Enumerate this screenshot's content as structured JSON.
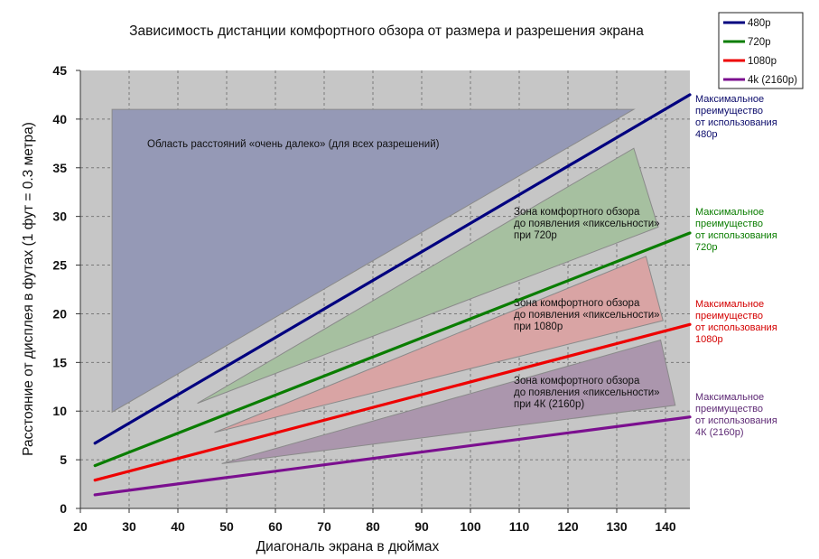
{
  "chart_data": {
    "type": "line",
    "title": "Зависимость дистанции комфортного обзора от размера и разрешения экрана",
    "xlabel": "Диагональ экрана в дюймах",
    "ylabel": "Расстояние от дисплея в футах (1 фут = 0.3 метра)",
    "xlim": [
      20,
      145
    ],
    "ylim": [
      0,
      45
    ],
    "x_ticks": [
      "20",
      "30",
      "40",
      "50",
      "60",
      "70",
      "80",
      "90",
      "100",
      "110",
      "120",
      "130",
      "140"
    ],
    "y_ticks": [
      "0",
      "5",
      "10",
      "15",
      "20",
      "25",
      "30",
      "35",
      "40",
      "45"
    ],
    "grid": true,
    "legend_position": "top-right",
    "series": [
      {
        "name": "480p",
        "color": "#00007f",
        "x": [
          23,
          145
        ],
        "y": [
          6.7,
          42.5
        ]
      },
      {
        "name": "720p",
        "color": "#0a7d00",
        "x": [
          23,
          145
        ],
        "y": [
          4.4,
          28.3
        ]
      },
      {
        "name": "1080p",
        "color": "#ee0000",
        "x": [
          23,
          145
        ],
        "y": [
          2.9,
          18.9
        ]
      },
      {
        "name": "4k (2160p)",
        "color": "#7b0f8f",
        "x": [
          23,
          145
        ],
        "y": [
          1.4,
          9.4
        ]
      }
    ],
    "regions": [
      {
        "label": "Область расстояний «очень далеко» (для всех разрешений)",
        "fill": "#9599b6",
        "points": [
          [
            26.5,
            41
          ],
          [
            133.5,
            41
          ],
          [
            26.5,
            9.9
          ]
        ]
      },
      {
        "label_lines": [
          "Зона комфортного обзора",
          "до появления «пиксельности»",
          "при 720р"
        ],
        "fill": "#a6c0a0",
        "points": [
          [
            44,
            10.8
          ],
          [
            133.5,
            37
          ],
          [
            138.5,
            28.9
          ]
        ]
      },
      {
        "label_lines": [
          "Зона комфортного обзора",
          "до появления «пиксельности»",
          "при 1080р"
        ],
        "fill": "#d9a4a4",
        "points": [
          [
            47.5,
            7.8
          ],
          [
            136,
            25.9
          ],
          [
            139.5,
            19.3
          ]
        ]
      },
      {
        "label_lines": [
          "Зона комфортного обзора",
          "до появления «пиксельности»",
          "при 4К (2160р)"
        ],
        "fill": "#ab96ad",
        "points": [
          [
            49,
            4.6
          ],
          [
            139,
            17.3
          ],
          [
            142,
            10.6
          ]
        ]
      }
    ],
    "annotations": [
      {
        "lines": [
          "Максимальное",
          "преимущество",
          "от использования",
          "480р"
        ],
        "color": "#0b0b6b"
      },
      {
        "lines": [
          "Максимальное",
          "преимущество",
          "от использования",
          "720р"
        ],
        "color": "#0a7d00"
      },
      {
        "lines": [
          "Максимальное",
          "преимущество",
          "от использования",
          "1080р"
        ],
        "color": "#d40000"
      },
      {
        "lines": [
          "Максимальное",
          "преимущество",
          "от использования",
          "4К (2160р)"
        ],
        "color": "#5e2a75"
      }
    ]
  }
}
